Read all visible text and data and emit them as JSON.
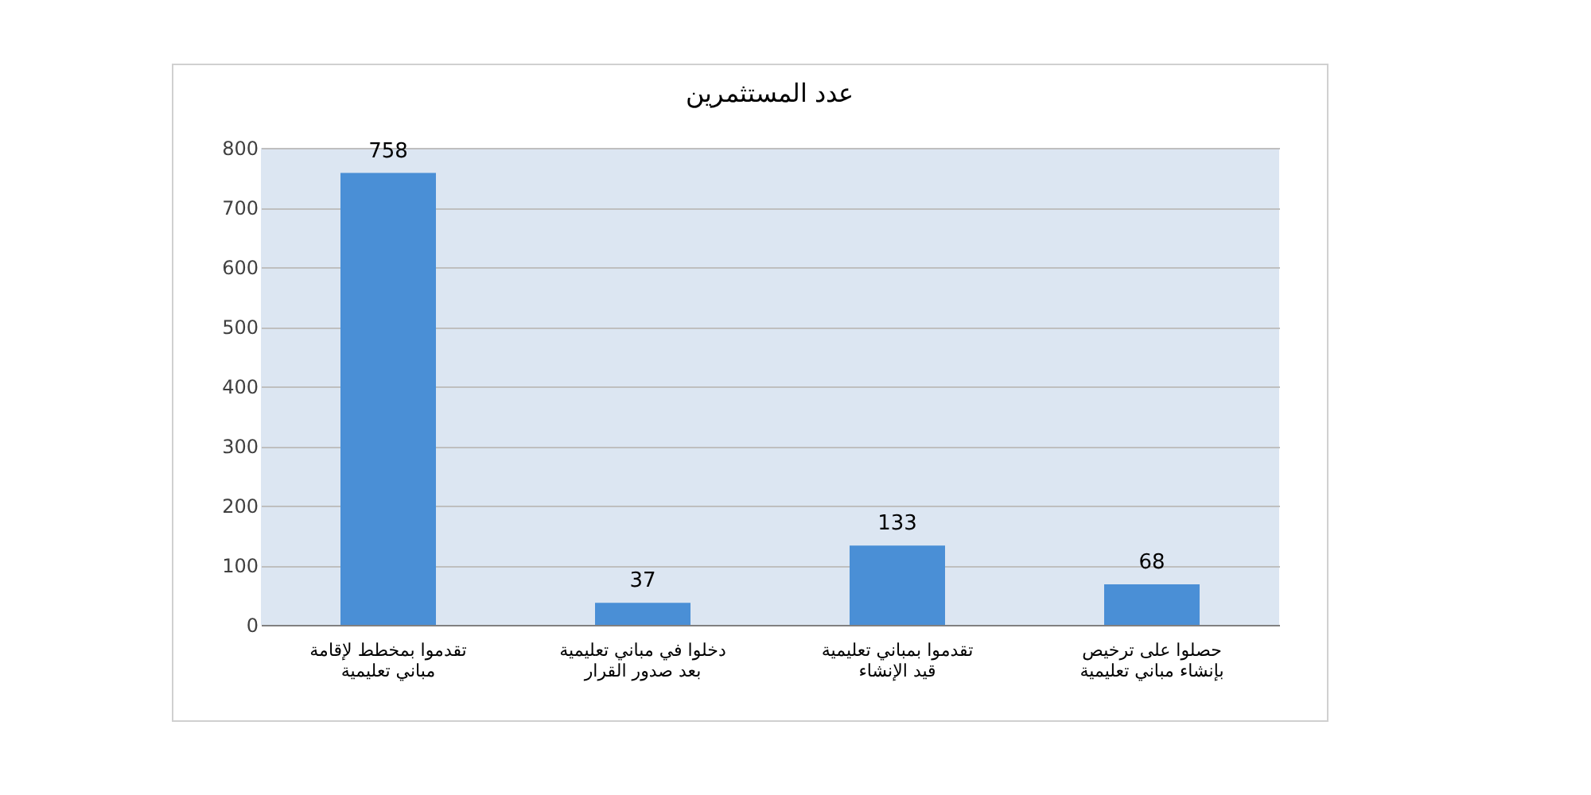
{
  "chart_data": {
    "type": "bar",
    "title": "عدد المستثمرين",
    "categories": [
      "تقدموا بمخطط لإقامة مباني تعليمية",
      "دخلوا في مباني تعليمية بعد صدور القرار",
      "تقدموا بمباني تعليمية قيد الإنشاء",
      "حصلوا على ترخيص بإنشاء مباني تعليمية"
    ],
    "values": [
      758,
      37,
      133,
      68
    ],
    "color": "#4a8fd6",
    "ylim": [
      0,
      800
    ],
    "yticks": [
      0,
      100,
      200,
      300,
      400,
      500,
      600,
      700,
      800
    ],
    "grid": "y",
    "data_labels": true
  }
}
